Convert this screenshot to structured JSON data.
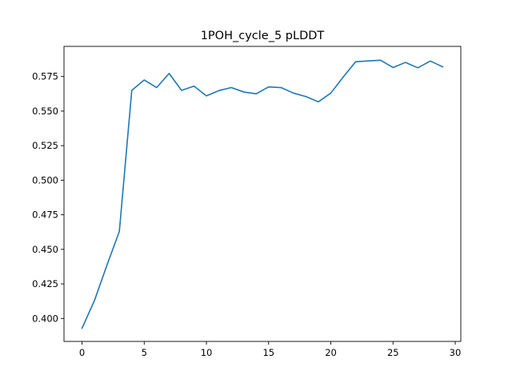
{
  "chart_data": {
    "type": "line",
    "title": "1POH_cycle_5 pLDDT",
    "xlabel": "",
    "ylabel": "",
    "xlim": [
      -1.45,
      30.45
    ],
    "ylim": [
      0.3834,
      0.5968
    ],
    "x_ticks": [
      0,
      5,
      10,
      15,
      20,
      25,
      30
    ],
    "y_ticks": [
      0.4,
      0.425,
      0.45,
      0.475,
      0.5,
      0.525,
      0.55,
      0.575
    ],
    "y_tick_labels": [
      "0.400",
      "0.425",
      "0.450",
      "0.475",
      "0.500",
      "0.525",
      "0.550",
      "0.575"
    ],
    "grid": false,
    "legend": "none",
    "series": [
      {
        "color": "#1f77b4",
        "x": [
          0,
          1,
          2,
          3,
          4,
          5,
          6,
          7,
          8,
          9,
          10,
          11,
          12,
          13,
          14,
          15,
          16,
          17,
          18,
          19,
          20,
          21,
          22,
          23,
          24,
          25,
          26,
          27,
          28,
          29
        ],
        "values": [
          0.393,
          0.413,
          0.4385,
          0.463,
          0.565,
          0.5725,
          0.567,
          0.5772,
          0.565,
          0.568,
          0.561,
          0.5648,
          0.567,
          0.5638,
          0.5625,
          0.5675,
          0.567,
          0.563,
          0.5605,
          0.5567,
          0.563,
          0.5747,
          0.5857,
          0.5863,
          0.5868,
          0.5815,
          0.5852,
          0.5813,
          0.5862,
          0.582
        ]
      }
    ]
  }
}
